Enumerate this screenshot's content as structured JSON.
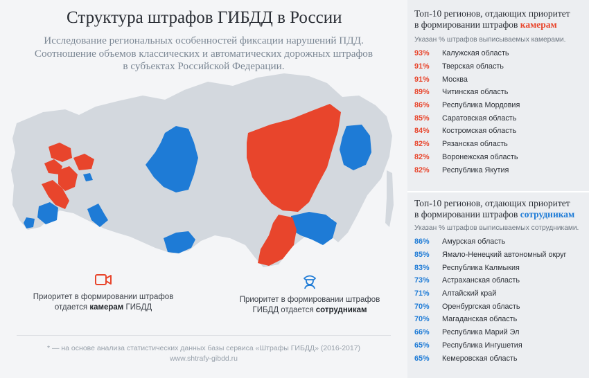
{
  "header": {
    "title": "Структура штрафов ГИБДД в России",
    "subtitle_lines": [
      "Исследование региональных особенностей фиксации нарушений ПДД.",
      "Соотношение объемов классических и автоматических дорожных штрафов",
      "в субъектах Российской Федерации."
    ]
  },
  "colors": {
    "cameras": "#e8452c",
    "officers": "#1e7bd6",
    "neutral_region": "#d3d8de"
  },
  "legend": {
    "cameras": {
      "icon": "video-camera-icon",
      "line1": "Приоритет в формировании штрафов",
      "prefix": "отдается ",
      "bold": "камерам",
      "suffix": " ГИБДД"
    },
    "officers": {
      "icon": "traffic-officer-icon",
      "line1": "Приоритет в формировании штрафов",
      "prefix": "ГИБДД отдается ",
      "bold": "сотрудникам",
      "suffix": ""
    }
  },
  "footnote": {
    "line1": "* — на основе анализа статистических данных базы сервиса «Штрафы ГИБДД» (2016-2017)",
    "line2": "www.shtrafy-gibdd.ru"
  },
  "chart_data": [
    {
      "type": "table",
      "title_line1": "Топ-10 регионов, отдающих приоритет",
      "title_line2_prefix": "в формировании штрафов ",
      "title_accent": "камерам",
      "note": "Указан % штрафов выписываемых камерами.",
      "rows": [
        {
          "value": 93,
          "label": "93%",
          "region": "Калужская область"
        },
        {
          "value": 91,
          "label": "91%",
          "region": "Тверская область"
        },
        {
          "value": 91,
          "label": "91%",
          "region": "Москва"
        },
        {
          "value": 89,
          "label": "89%",
          "region": "Читинская область"
        },
        {
          "value": 86,
          "label": "86%",
          "region": "Республика Мордовия"
        },
        {
          "value": 85,
          "label": "85%",
          "region": "Саратовская область"
        },
        {
          "value": 84,
          "label": "84%",
          "region": "Костромская область"
        },
        {
          "value": 82,
          "label": "82%",
          "region": "Рязанская область"
        },
        {
          "value": 82,
          "label": "82%",
          "region": "Воронежская область"
        },
        {
          "value": 82,
          "label": "82%",
          "region": "Республика Якутия"
        }
      ]
    },
    {
      "type": "table",
      "title_line1": "Топ-10 регионов, отдающих приоритет",
      "title_line2_prefix": "в формировании штрафов ",
      "title_accent": "сотрудникам",
      "note": "Указан % штрафов выписываемых сотрудниками.",
      "rows": [
        {
          "value": 86,
          "label": "86%",
          "region": "Амурская  область"
        },
        {
          "value": 85,
          "label": "85%",
          "region": "Ямало-Ненецкий автономный округ"
        },
        {
          "value": 83,
          "label": "83%",
          "region": "Республика Калмыкия"
        },
        {
          "value": 73,
          "label": "73%",
          "region": "Астраханская область"
        },
        {
          "value": 71,
          "label": "71%",
          "region": "Алтайский край"
        },
        {
          "value": 70,
          "label": "70%",
          "region": "Оренбургская область"
        },
        {
          "value": 70,
          "label": "70%",
          "region": "Магаданская область"
        },
        {
          "value": 66,
          "label": "66%",
          "region": "Республика Марий Эл"
        },
        {
          "value": 65,
          "label": "65%",
          "region": "Республика Ингушетия"
        },
        {
          "value": 65,
          "label": "65%",
          "region": "Кемеровская область"
        }
      ]
    }
  ]
}
